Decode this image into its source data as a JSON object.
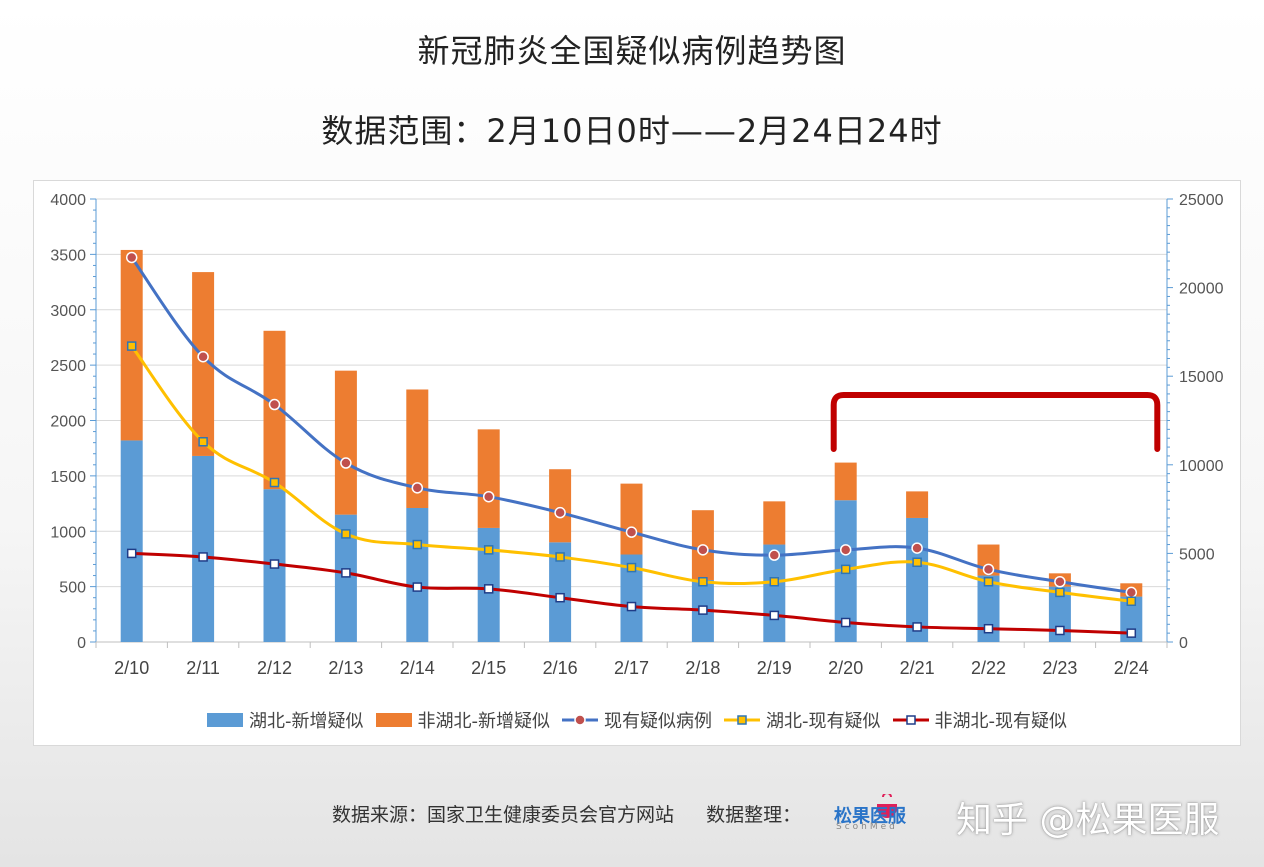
{
  "title_line1": "新冠肺炎全国疑似病例趋势图",
  "title_line2": "数据范围：2月10日0时——2月24日24时",
  "footer": {
    "source": "数据来源：国家卫生健康委员会官方网站",
    "organizer": "数据整理："
  },
  "logo": {
    "text": "松果医服",
    "sub": "ScohMed"
  },
  "watermark": "知乎 @松果医服",
  "chart_data": {
    "type": "bar",
    "categories": [
      "2/10",
      "2/11",
      "2/12",
      "2/13",
      "2/14",
      "2/15",
      "2/16",
      "2/17",
      "2/18",
      "2/19",
      "2/20",
      "2/21",
      "2/22",
      "2/23",
      "2/24"
    ],
    "left_axis": {
      "ylim": [
        0,
        4000
      ],
      "ticks": [
        "0",
        "500",
        "1000",
        "1500",
        "2000",
        "2500",
        "3000",
        "3500",
        "4000"
      ]
    },
    "right_axis": {
      "ylim": [
        0,
        25000
      ],
      "ticks": [
        "0",
        "5000",
        "10000",
        "15000",
        "20000",
        "25000"
      ]
    },
    "series": [
      {
        "name": "湖北-新增疑似",
        "type": "bar",
        "stack": "new",
        "axis": "left",
        "color": "#5b9bd5",
        "values": [
          1820,
          1680,
          1380,
          1150,
          1210,
          1030,
          900,
          790,
          560,
          880,
          1280,
          1120,
          600,
          500,
          410
        ]
      },
      {
        "name": "非湖北-新增疑似",
        "type": "bar",
        "stack": "new",
        "axis": "left",
        "color": "#ed7d31",
        "values": [
          1720,
          1660,
          1430,
          1300,
          1070,
          890,
          660,
          640,
          630,
          390,
          340,
          240,
          280,
          120,
          120
        ]
      },
      {
        "name": "现有疑似病例",
        "type": "line",
        "axis": "right",
        "color": "#4472c4",
        "marker": "circle",
        "marker_color": "#c0504d",
        "values": [
          21700,
          16100,
          13400,
          10100,
          8700,
          8200,
          7300,
          6200,
          5200,
          4900,
          5200,
          5300,
          4100,
          3400,
          2800
        ]
      },
      {
        "name": "湖北-现有疑似",
        "type": "line",
        "axis": "right",
        "color": "#ffc000",
        "marker": "square",
        "marker_color": "#ffc000",
        "values": [
          16700,
          11300,
          9000,
          6100,
          5500,
          5200,
          4800,
          4200,
          3400,
          3400,
          4100,
          4500,
          3400,
          2800,
          2300
        ]
      },
      {
        "name": "非湖北-现有疑似",
        "type": "line",
        "axis": "right",
        "color": "#c00000",
        "marker": "square",
        "marker_color": "#ffffff",
        "values": [
          5000,
          4800,
          4400,
          3900,
          3100,
          3000,
          2500,
          2000,
          1800,
          1500,
          1100,
          850,
          750,
          650,
          500
        ]
      }
    ],
    "grid": true,
    "legend": "bottom",
    "annotation": {
      "type": "bracket",
      "from": "2/20",
      "to": "2/24",
      "color": "#c00000"
    }
  }
}
